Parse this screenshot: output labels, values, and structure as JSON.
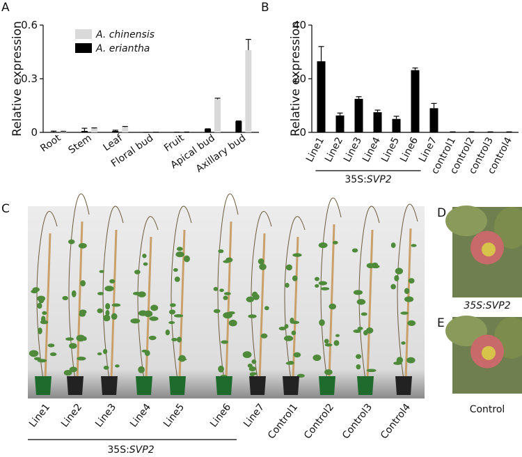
{
  "chart_data": [
    {
      "type": "bar",
      "panel": "A",
      "ylabel": "Relative expression",
      "categories": [
        "Root",
        "Stem",
        "Leaf",
        "Floral bud",
        "Fruit",
        "Apical bud",
        "Axillary bud"
      ],
      "series": [
        {
          "name": "A. chinensis",
          "color": "#d9d9d9",
          "values": [
            0.003,
            0.022,
            0.03,
            0.001,
            0.002,
            0.185,
            0.46
          ],
          "errors": [
            0.003,
            0.003,
            0.003,
            0,
            0,
            0.006,
            0.06
          ]
        },
        {
          "name": "A. eriantha",
          "color": "#000000",
          "values": [
            0.002,
            0.008,
            0.008,
            0,
            0.001,
            0.018,
            0.062
          ],
          "errors": [
            0.005,
            0.015,
            0.004,
            0,
            0,
            0.002,
            0.002
          ]
        }
      ],
      "ylim": [
        0,
        0.6
      ],
      "yticks": [
        0,
        0.3,
        0.6
      ]
    },
    {
      "type": "bar",
      "panel": "B",
      "ylabel": "Relative expression",
      "categories": [
        "Line1",
        "Line2",
        "Line3",
        "Line4",
        "Line5",
        "Line6",
        "Line7",
        "control1",
        "control2",
        "control3",
        "control4"
      ],
      "series": [
        {
          "color": "#000000",
          "values": [
            26.5,
            6.3,
            12.5,
            7.5,
            5,
            23.2,
            9,
            0.1,
            0.1,
            0.1,
            0.1
          ],
          "errors": [
            5.5,
            0.9,
            0.8,
            0.8,
            1,
            0.8,
            1.8,
            0.1,
            0.1,
            0.1,
            0.1
          ]
        }
      ],
      "group_label": {
        "prefix": "35S:",
        "gene": "SVP2"
      },
      "ylim": [
        0,
        40
      ],
      "yticks": [
        0,
        20,
        40
      ]
    }
  ],
  "photos": {
    "C": {
      "panel": "C",
      "labels": [
        "Line1",
        "Line2",
        "Line3",
        "Line4",
        "Line5",
        "Line6",
        "Line7",
        "Control1",
        "Control2",
        "Control3",
        "Control4"
      ],
      "group_label": {
        "prefix": "35S:",
        "gene": "SVP2"
      }
    },
    "D": {
      "panel": "D",
      "caption": "35S:SVP2"
    },
    "E": {
      "panel": "E",
      "caption": "Control"
    }
  }
}
